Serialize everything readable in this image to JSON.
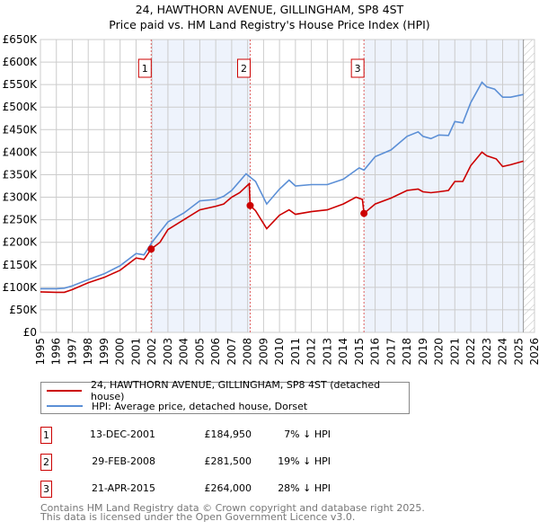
{
  "title_line1": "24, HAWTHORN AVENUE, GILLINGHAM, SP8 4ST",
  "title_line2": "Price paid vs. HM Land Registry's House Price Index (HPI)",
  "colors": {
    "property": "#cc0000",
    "hpi": "#5b8fd6",
    "shade": "#eef3fc",
    "grid": "#cccccc"
  },
  "chart_data": {
    "type": "line",
    "title": "Price paid vs. HM Land Registry's House Price Index (HPI)",
    "xlabel": "",
    "ylabel": "",
    "xlim": [
      1995,
      2026
    ],
    "ylim": [
      0,
      650000
    ],
    "grid": true,
    "x_ticks": [
      "1995",
      "1996",
      "1997",
      "1998",
      "1999",
      "2000",
      "2001",
      "2002",
      "2003",
      "2004",
      "2005",
      "2006",
      "2007",
      "2008",
      "2009",
      "2010",
      "2011",
      "2012",
      "2013",
      "2014",
      "2015",
      "2016",
      "2017",
      "2018",
      "2019",
      "2020",
      "2021",
      "2022",
      "2023",
      "2024",
      "2025",
      "2026"
    ],
    "y_ticks": [
      {
        "value": 0,
        "label": "£0"
      },
      {
        "value": 50000,
        "label": "£50K"
      },
      {
        "value": 100000,
        "label": "£100K"
      },
      {
        "value": 150000,
        "label": "£150K"
      },
      {
        "value": 200000,
        "label": "£200K"
      },
      {
        "value": 250000,
        "label": "£250K"
      },
      {
        "value": 300000,
        "label": "£300K"
      },
      {
        "value": 350000,
        "label": "£350K"
      },
      {
        "value": 400000,
        "label": "£400K"
      },
      {
        "value": 450000,
        "label": "£450K"
      },
      {
        "value": 500000,
        "label": "£500K"
      },
      {
        "value": 550000,
        "label": "£550K"
      },
      {
        "value": 600000,
        "label": "£600K"
      },
      {
        "value": 650000,
        "label": "£650K"
      }
    ],
    "shaded_ranges": [
      [
        2001.95,
        2008.16
      ],
      [
        2015.3,
        2025.3
      ]
    ],
    "data_end": 2025.3,
    "series": [
      {
        "name": "24, HAWTHORN AVENUE, GILLINGHAM, SP8 4ST (detached house)",
        "color": "#cc0000",
        "x": [
          1995,
          1996,
          1996.5,
          1997,
          1998,
          1999,
          2000,
          2001,
          2001.5,
          2001.95,
          2002.5,
          2003,
          2004,
          2005,
          2006,
          2006.5,
          2007,
          2007.5,
          2008.1,
          2008.16,
          2008.5,
          2009.2,
          2010,
          2010.6,
          2011,
          2012,
          2013,
          2014,
          2014.8,
          2015.2,
          2015.3,
          2016,
          2017,
          2018,
          2018.7,
          2019,
          2019.5,
          2020,
          2020.6,
          2021,
          2021.5,
          2022,
          2022.7,
          2023,
          2023.6,
          2024,
          2024.5,
          2025.3
        ],
        "y": [
          90000,
          89000,
          89000,
          95000,
          110000,
          122000,
          138000,
          165000,
          162000,
          184950,
          200000,
          228000,
          250000,
          272000,
          280000,
          285000,
          300000,
          310000,
          330000,
          281500,
          270000,
          230000,
          260000,
          272000,
          262000,
          268000,
          272000,
          285000,
          300000,
          295000,
          264000,
          285000,
          298000,
          315000,
          318000,
          312000,
          310000,
          312000,
          315000,
          335000,
          335000,
          370000,
          400000,
          392000,
          385000,
          368000,
          372000,
          380000
        ]
      },
      {
        "name": "HPI: Average price, detached house, Dorset",
        "color": "#5b8fd6",
        "x": [
          1995,
          1996,
          1996.5,
          1997,
          1998,
          1999,
          2000,
          2001,
          2001.5,
          2002,
          2003,
          2004,
          2005,
          2006,
          2006.5,
          2007,
          2007.9,
          2008.5,
          2009.2,
          2010,
          2010.6,
          2011,
          2012,
          2013,
          2014,
          2015,
          2015.3,
          2016,
          2017,
          2018,
          2018.7,
          2019,
          2019.5,
          2020,
          2020.6,
          2021,
          2021.5,
          2022,
          2022.7,
          2023,
          2023.5,
          2024,
          2024.5,
          2025.3
        ],
        "y": [
          97000,
          97000,
          98000,
          103000,
          117000,
          130000,
          148000,
          175000,
          172000,
          200000,
          245000,
          265000,
          292000,
          295000,
          302000,
          315000,
          352000,
          335000,
          285000,
          318000,
          338000,
          325000,
          328000,
          328000,
          340000,
          365000,
          360000,
          390000,
          405000,
          435000,
          445000,
          435000,
          430000,
          438000,
          437000,
          468000,
          465000,
          510000,
          555000,
          545000,
          540000,
          522000,
          522000,
          528000
        ]
      }
    ],
    "markers": [
      {
        "label": "1",
        "x": 2001.95,
        "y": 184950
      },
      {
        "label": "2",
        "x": 2008.16,
        "y": 281500
      },
      {
        "label": "3",
        "x": 2015.3,
        "y": 264000
      }
    ]
  },
  "legend": {
    "property": "24, HAWTHORN AVENUE, GILLINGHAM, SP8 4ST (detached house)",
    "hpi": "HPI: Average price, detached house, Dorset"
  },
  "transactions": [
    {
      "num": "1",
      "date": "13-DEC-2001",
      "price": "£184,950",
      "hpi": "7% ↓ HPI"
    },
    {
      "num": "2",
      "date": "29-FEB-2008",
      "price": "£281,500",
      "hpi": "19% ↓ HPI"
    },
    {
      "num": "3",
      "date": "21-APR-2015",
      "price": "£264,000",
      "hpi": "28% ↓ HPI"
    }
  ],
  "footer": {
    "line1": "Contains HM Land Registry data © Crown copyright and database right 2025.",
    "line2": "This data is licensed under the Open Government Licence v3.0."
  }
}
